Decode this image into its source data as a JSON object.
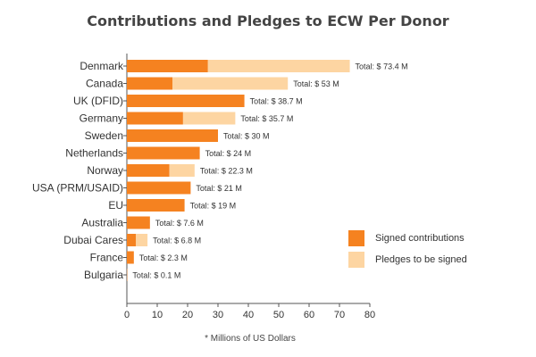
{
  "chart_data": {
    "type": "bar",
    "orientation": "horizontal",
    "stacked": true,
    "title": "Contributions and Pledges to ECW Per Donor",
    "footnote": "* Millions of US Dollars",
    "categories": [
      "Denmark",
      "Canada",
      "UK (DFID)",
      "Germany",
      "Sweden",
      "Netherlands",
      "Norway",
      "USA (PRM/USAID)",
      "EU",
      "Australia",
      "Dubai Cares",
      "France",
      "Bulgaria"
    ],
    "series": [
      {
        "name": "Signed contributions",
        "color": "#f58220",
        "values": [
          26.7,
          15,
          38.7,
          18.5,
          30,
          24,
          14,
          21,
          19,
          7.6,
          3,
          2.3,
          0.1
        ]
      },
      {
        "name": "Pledges to be signed",
        "color": "#fdd5a2",
        "values": [
          46.7,
          38,
          0,
          17.2,
          0,
          0,
          8.3,
          0,
          0,
          0,
          3.8,
          0,
          0
        ]
      }
    ],
    "total_labels": [
      "Total: $ 73.4 M",
      "Total: $ 53 M",
      "Total: $ 38.7 M",
      "Total: $ 35.7 M",
      "Total: $ 30 M",
      "Total: $ 24 M",
      "Total: $ 22.3 M",
      "Total: $ 21 M",
      "Total: $ 19 M",
      "Total: $ 7.6 M",
      "Total: $ 6.8 M",
      "Total: $ 2.3 M",
      "Total: $ 0.1 M"
    ],
    "xlim": [
      0,
      80
    ],
    "xticks": [
      0,
      10,
      20,
      30,
      40,
      50,
      60,
      70,
      80
    ],
    "xtick_labels": [
      "0",
      "10",
      "20",
      "30",
      "40",
      "50",
      "60",
      "70",
      "80"
    ],
    "grid": false,
    "legend_position": "right"
  }
}
